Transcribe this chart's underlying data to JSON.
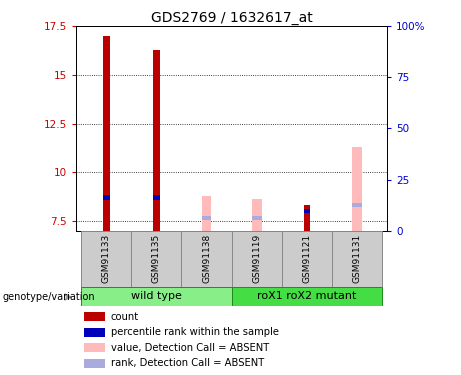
{
  "title": "GDS2769 / 1632617_at",
  "samples": [
    "GSM91133",
    "GSM91135",
    "GSM91138",
    "GSM91119",
    "GSM91121",
    "GSM91131"
  ],
  "ylim_left": [
    7.0,
    17.5
  ],
  "yticks_left": [
    7.5,
    10.0,
    12.5,
    15.0,
    17.5
  ],
  "ytick_labels_left": [
    "7.5",
    "10",
    "12.5",
    "15",
    "17.5"
  ],
  "ylim_right": [
    0,
    100
  ],
  "yticks_right": [
    0,
    25,
    50,
    75,
    100
  ],
  "ytick_labels_right": [
    "0",
    "25",
    "50",
    "75",
    "100%"
  ],
  "bar_base": 7.0,
  "red_bars": {
    "values": [
      17.0,
      16.3,
      null,
      null,
      8.3,
      null
    ],
    "color": "#bb0000"
  },
  "blue_bars": {
    "values": [
      8.7,
      8.7,
      null,
      null,
      8.0,
      null
    ],
    "color": "#0000bb"
  },
  "pink_bars": {
    "values": [
      null,
      null,
      8.8,
      8.6,
      null,
      11.3
    ],
    "color": "#ffbbbb"
  },
  "lightblue_bars": {
    "values": [
      null,
      null,
      7.65,
      7.65,
      null,
      8.3
    ],
    "color": "#aaaadd"
  },
  "bar_width": 0.35,
  "blue_bar_height": 0.22,
  "left_tick_color": "#cc0000",
  "right_tick_color": "#0000cc",
  "group_wt_color": "#88ee88",
  "group_mut_color": "#44dd44",
  "sample_box_color": "#cccccc",
  "legend_items": [
    {
      "label": "count",
      "color": "#bb0000"
    },
    {
      "label": "percentile rank within the sample",
      "color": "#0000bb"
    },
    {
      "label": "value, Detection Call = ABSENT",
      "color": "#ffbbbb"
    },
    {
      "label": "rank, Detection Call = ABSENT",
      "color": "#aaaadd"
    }
  ]
}
